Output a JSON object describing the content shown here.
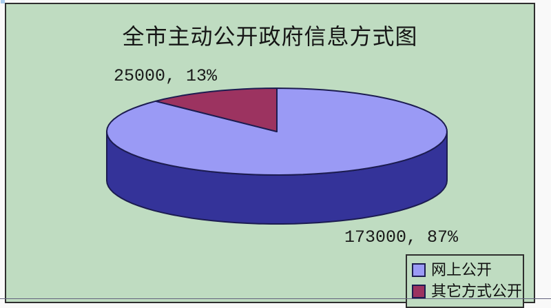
{
  "chart": {
    "background_color": "#bfdcc1",
    "border_color": "#2e2e2e",
    "outline_color": "#1c1c50"
  },
  "chart_data": {
    "type": "pie",
    "title": "全市主动公开政府信息方式图",
    "effect_3d": true,
    "start_angle_deg": 0,
    "direction": "clockwise",
    "legend_position": "bottom-right",
    "series": [
      {
        "name": "网上公开",
        "value": 173000,
        "percent": 87,
        "data_label": "173000, 87%",
        "color": "#9a9af5",
        "side_color": "#343399"
      },
      {
        "name": "其它方式公开",
        "value": 25000,
        "percent": 13,
        "data_label": "25000, 13%",
        "color": "#9c3360"
      }
    ]
  }
}
